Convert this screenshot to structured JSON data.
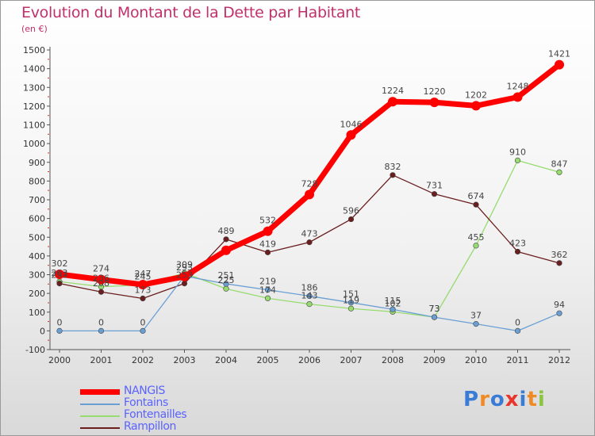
{
  "title": "Evolution du Montant de la Dette par Habitant",
  "subtitle": "(en €)",
  "logo": {
    "text": "Proxiti",
    "colors": [
      "#3a7bd5",
      "#f08a24",
      "#3a7bd5",
      "#e8352e",
      "#3a7bd5",
      "#f08a24",
      "#8bc43f"
    ]
  },
  "chart_data": {
    "type": "line",
    "x": [
      "2000",
      "2001",
      "2002",
      "2003",
      "2004",
      "2005",
      "2006",
      "2007",
      "2008",
      "2009",
      "2010",
      "2011",
      "2012"
    ],
    "ylim": [
      -100,
      1500
    ],
    "yticks": [
      -100,
      0,
      100,
      200,
      300,
      400,
      500,
      600,
      700,
      800,
      900,
      1000,
      1100,
      1200,
      1300,
      1400,
      1500
    ],
    "grid": false,
    "legend_position": "bottom-left",
    "series": [
      {
        "name": "NANGIS",
        "color": "#ff0000",
        "values": [
          302,
          274,
          247,
          290,
          430,
          532,
          728,
          1046,
          1224,
          1220,
          1202,
          1248,
          1421
        ],
        "labels": [
          "302",
          "274",
          "247",
          "",
          "",
          "532",
          "728",
          "1046",
          "1224",
          "1220",
          "1202",
          "1248",
          "1421"
        ]
      },
      {
        "name": "Fontains",
        "color": "#6a9fd4",
        "values": [
          0,
          0,
          0,
          293,
          251,
          219,
          186,
          151,
          115,
          73,
          37,
          0,
          94
        ],
        "labels": [
          "0",
          "0",
          "0",
          "293",
          "251",
          "219",
          "186",
          "151",
          "115",
          "73",
          "37",
          "0",
          "94"
        ]
      },
      {
        "name": "Fontenailles",
        "color": "#96dc6e",
        "values": [
          263,
          236,
          245,
          309,
          225,
          174,
          143,
          119,
          102,
          73,
          455,
          910,
          847
        ],
        "labels": [
          "263",
          "236",
          "245",
          "309",
          "225",
          "174",
          "143",
          "119",
          "102",
          "73",
          "455",
          "910",
          "847"
        ]
      },
      {
        "name": "Rampillon",
        "color": "#6b1e1e",
        "values": [
          253,
          208,
          173,
          253,
          489,
          419,
          473,
          596,
          832,
          731,
          674,
          423,
          362
        ],
        "labels": [
          "253",
          "208",
          "173",
          "253",
          "489",
          "419",
          "473",
          "596",
          "832",
          "731",
          "674",
          "423",
          "362"
        ]
      }
    ]
  }
}
